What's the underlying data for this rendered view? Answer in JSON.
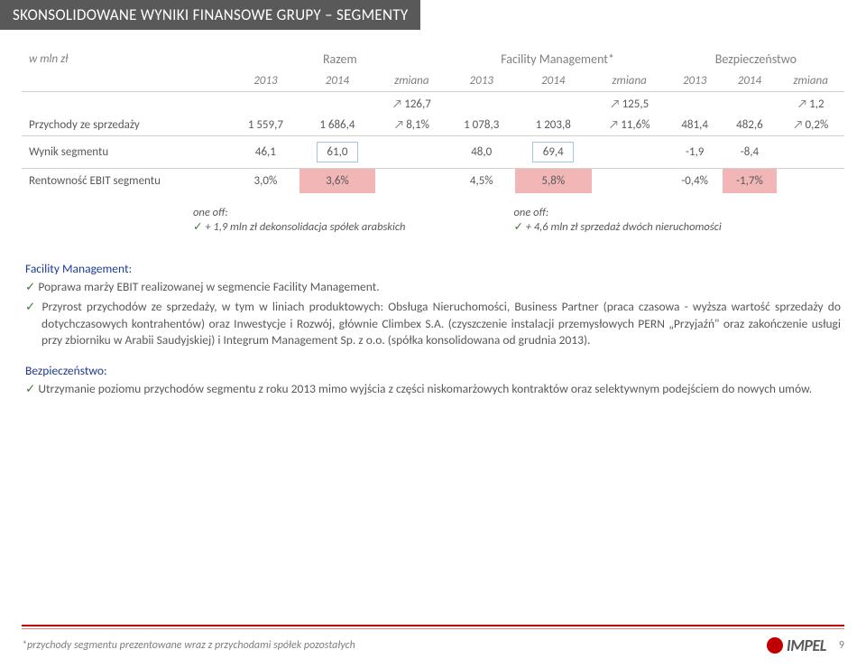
{
  "title": "SKONSOLIDOWANE WYNIKI FINANSOWE GRUPY – SEGMENTY",
  "table": {
    "unit_label": "w mln zł",
    "sections": [
      {
        "name": "Razem",
        "years": [
          "2013",
          "2014",
          "zmiana"
        ]
      },
      {
        "name": "Facility Management*",
        "years": [
          "2013",
          "2014",
          "zmiana"
        ]
      },
      {
        "name": "Bezpieczeństwo",
        "years": [
          "2013",
          "2014",
          "zmiana"
        ]
      }
    ],
    "rows": {
      "blank_change": {
        "razem": "126,7",
        "fm": "125,5",
        "bz": "1,2"
      },
      "revenue": {
        "label": "Przychody ze sprzedaży",
        "r13": "1 559,7",
        "r14": "1 686,4",
        "rch": "8,1%",
        "f13": "1 078,3",
        "f14": "1 203,8",
        "fch": "11,6%",
        "b13": "481,4",
        "b14": "482,6",
        "bch": "0,2%"
      },
      "segment_result": {
        "label": "Wynik segmentu",
        "r13": "46,1",
        "r14": "61,0",
        "f13": "48,0",
        "f14": "69,4",
        "b13": "-1,9",
        "b14": "-8,4"
      },
      "ebit": {
        "label": "Rentowność EBIT segmentu",
        "r13": "3,0%",
        "r14": "3,6%",
        "f13": "4,5%",
        "f14": "5,8%",
        "b13": "-0,4%",
        "b14": "-1,7%"
      }
    }
  },
  "oneoff": {
    "left_title": "one off:",
    "left_item": "+ 1,9 mln zł dekonsolidacja spółek arabskich",
    "right_title": "one off:",
    "right_item": "+ 4,6 mln zł sprzedaż dwóch nieruchomości"
  },
  "fm_section": {
    "heading": "Facility Management:",
    "bullet1": "Poprawa marży EBIT realizowanej w segmencie Facility Management.",
    "bullet2": "Przyrost przychodów ze sprzedaży, w tym w liniach produktowych: Obsługa Nieruchomości, Business Partner (praca czasowa - wyższa wartość sprzedaży do dotychczasowych kontrahentów) oraz Inwestycje i Rozwój, głównie Climbex S.A. (czyszczenie instalacji przemysłowych PERN „Przyjaźń\" oraz zakończenie usługi przy zbiorniku w Arabii Saudyjskiej) i Integrum Management Sp. z o.o. (spółka konsolidowana od grudnia 2013)."
  },
  "bez_section": {
    "heading": "Bezpieczeństwo:",
    "bullet1": "Utrzymanie poziomu przychodów segmentu z roku 2013 mimo wyjścia z części niskomarżowych kontraktów oraz selektywnym podejściem do nowych umów."
  },
  "footnote": "*przychody segmentu prezentowane wraz z przychodami spółek pozostałych",
  "logo_text": "IMPEL",
  "page_number": "9",
  "colors": {
    "title_bg": "#595959",
    "pink": "#f2b6b6",
    "box_border": "#9fc5e8",
    "accent": "#c00000",
    "check": "#3b7d3b",
    "link_blue": "#1f3b8f"
  }
}
